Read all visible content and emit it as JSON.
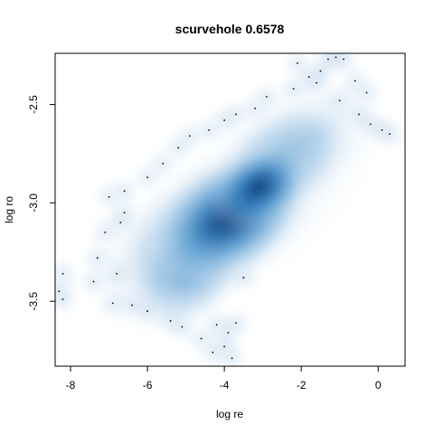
{
  "chart_data": {
    "type": "heatmap",
    "title": "scurvehole 0.6578",
    "xlabel": "log re",
    "ylabel": "log ro",
    "xlim": [
      -8.4,
      0.7
    ],
    "ylim": [
      -3.83,
      -2.24
    ],
    "xticks": [
      -8,
      -6,
      -4,
      -2,
      0
    ],
    "yticks": [
      -3.5,
      -3.0,
      -2.5
    ],
    "xtick_labels": [
      "-8",
      "-6",
      "-4",
      "-2",
      "0"
    ],
    "ytick_labels": [
      "-3.5",
      "-3.0",
      "-2.5"
    ],
    "grid": false,
    "legend": "none",
    "colors": {
      "high": "#08306b",
      "mid": "#2a7fc0",
      "low": "#c6dbef",
      "background": "#ffffff"
    },
    "density_peak": {
      "x": -3.9,
      "y": -3.08
    },
    "outlier_points": [
      {
        "x": -0.9,
        "y": -2.27
      },
      {
        "x": -1.1,
        "y": -2.26
      },
      {
        "x": -1.3,
        "y": -2.27
      },
      {
        "x": -2.1,
        "y": -2.29
      },
      {
        "x": -1.5,
        "y": -2.33
      },
      {
        "x": -1.8,
        "y": -2.36
      },
      {
        "x": -2.2,
        "y": -2.42
      },
      {
        "x": -2.9,
        "y": -2.46
      },
      {
        "x": -0.6,
        "y": -2.38
      },
      {
        "x": -0.3,
        "y": -2.44
      },
      {
        "x": -0.2,
        "y": -2.6
      },
      {
        "x": 0.1,
        "y": -2.63
      },
      {
        "x": 0.3,
        "y": -2.65
      },
      {
        "x": -0.5,
        "y": -2.55
      },
      {
        "x": -3.2,
        "y": -2.52
      },
      {
        "x": -3.7,
        "y": -2.55
      },
      {
        "x": -4.0,
        "y": -2.58
      },
      {
        "x": -4.4,
        "y": -2.63
      },
      {
        "x": -4.9,
        "y": -2.66
      },
      {
        "x": -5.2,
        "y": -2.72
      },
      {
        "x": -5.6,
        "y": -2.8
      },
      {
        "x": -6.0,
        "y": -2.87
      },
      {
        "x": -6.6,
        "y": -2.94
      },
      {
        "x": -7.0,
        "y": -2.97
      },
      {
        "x": -7.1,
        "y": -3.15
      },
      {
        "x": -7.3,
        "y": -3.28
      },
      {
        "x": -7.4,
        "y": -3.4
      },
      {
        "x": -6.8,
        "y": -3.36
      },
      {
        "x": -6.9,
        "y": -3.51
      },
      {
        "x": -6.4,
        "y": -3.52
      },
      {
        "x": -6.0,
        "y": -3.55
      },
      {
        "x": -8.2,
        "y": -3.36
      },
      {
        "x": -8.3,
        "y": -3.45
      },
      {
        "x": -8.2,
        "y": -3.49
      },
      {
        "x": -5.4,
        "y": -3.6
      },
      {
        "x": -5.1,
        "y": -3.63
      },
      {
        "x": -4.6,
        "y": -3.69
      },
      {
        "x": -4.2,
        "y": -3.62
      },
      {
        "x": -3.9,
        "y": -3.66
      },
      {
        "x": -3.7,
        "y": -3.61
      },
      {
        "x": -4.0,
        "y": -3.73
      },
      {
        "x": -4.3,
        "y": -3.76
      },
      {
        "x": -3.8,
        "y": -3.79
      },
      {
        "x": -3.5,
        "y": -3.38
      },
      {
        "x": -6.6,
        "y": -3.05
      },
      {
        "x": -6.7,
        "y": -3.1
      },
      {
        "x": -1.0,
        "y": -2.48
      },
      {
        "x": -1.6,
        "y": -2.39
      }
    ]
  }
}
